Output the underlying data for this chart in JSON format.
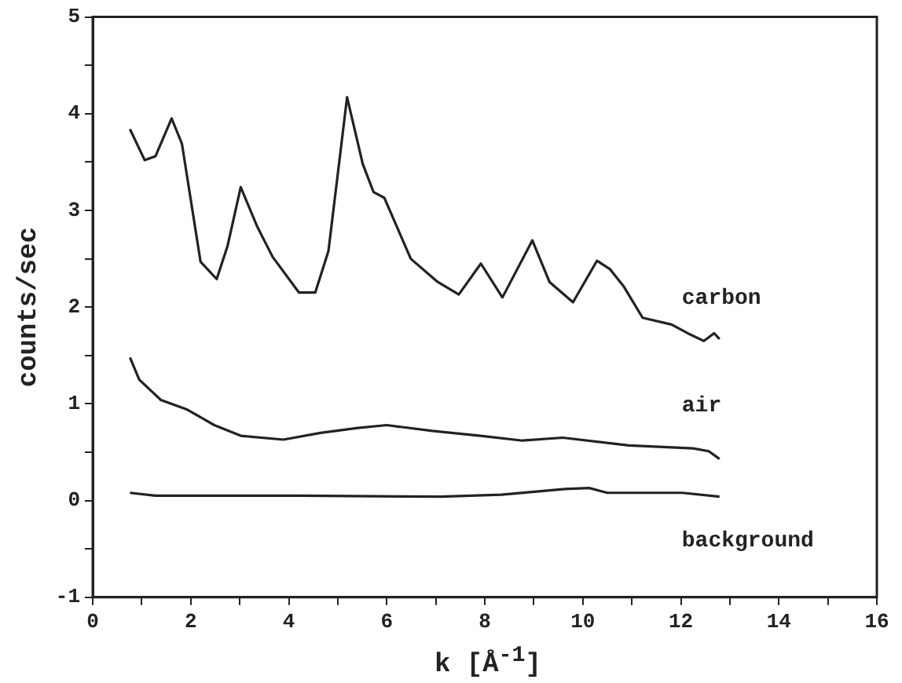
{
  "chart_data": {
    "type": "line",
    "xlabel": "k [Å$^{-1}$]",
    "ylabel": "counts/sec",
    "xlim": [
      0,
      16
    ],
    "ylim": [
      -1,
      5
    ],
    "xticks": [
      0,
      {
        "value": 1,
        "label": null
      },
      2,
      {
        "value": 3,
        "label": null
      },
      4,
      {
        "value": 5,
        "label": null
      },
      6,
      {
        "value": 7,
        "label": null
      },
      8,
      {
        "value": 9,
        "label": null
      },
      10,
      {
        "value": 11,
        "label": null
      },
      12,
      {
        "value": 13,
        "label": null
      },
      14,
      {
        "value": 15,
        "label": null
      },
      16
    ],
    "yticks": [
      -1,
      {
        "value": -0.5,
        "label": null
      },
      0,
      {
        "value": 0.5,
        "label": null
      },
      1,
      {
        "value": 1.5,
        "label": null
      },
      2,
      {
        "value": 2.5,
        "label": null
      },
      3,
      {
        "value": 3.5,
        "label": null
      },
      4,
      {
        "value": 4.5,
        "label": null
      },
      5
    ],
    "grid": false,
    "legend": false,
    "marker": "none",
    "line_style": "solid",
    "series": [
      {
        "name": "carbon",
        "color": "#222222",
        "x": [
          0.76,
          1.06,
          1.28,
          1.61,
          1.82,
          2.2,
          2.53,
          2.75,
          3.02,
          3.35,
          3.67,
          4.21,
          4.54,
          4.81,
          5.19,
          5.51,
          5.73,
          5.95,
          6.49,
          7.04,
          7.47,
          7.92,
          8.36,
          8.97,
          9.32,
          9.8,
          10.29,
          10.56,
          10.84,
          11.22,
          11.81,
          12.14,
          12.47,
          12.68,
          12.79
        ],
        "values": [
          3.84,
          3.52,
          3.56,
          3.95,
          3.69,
          2.47,
          2.29,
          2.63,
          3.24,
          2.84,
          2.52,
          2.15,
          2.15,
          2.58,
          4.17,
          3.48,
          3.19,
          3.13,
          2.5,
          2.26,
          2.13,
          2.45,
          2.1,
          2.69,
          2.26,
          2.05,
          2.48,
          2.39,
          2.21,
          1.89,
          1.82,
          1.73,
          1.65,
          1.73,
          1.67
        ]
      },
      {
        "name": "air",
        "color": "#222222",
        "x": [
          0.76,
          0.95,
          1.39,
          1.93,
          2.48,
          3.02,
          3.89,
          4.65,
          5.41,
          6.0,
          6.93,
          7.91,
          8.77,
          9.59,
          10.94,
          12.25,
          12.57,
          12.79
        ],
        "values": [
          1.48,
          1.25,
          1.04,
          0.94,
          0.78,
          0.67,
          0.63,
          0.7,
          0.75,
          0.78,
          0.72,
          0.67,
          0.62,
          0.65,
          0.57,
          0.54,
          0.51,
          0.43
        ]
      },
      {
        "name": "background",
        "color": "#222222",
        "x": [
          0.76,
          1.28,
          4.21,
          7.1,
          8.34,
          9.64,
          10.13,
          10.5,
          12.03,
          12.79
        ],
        "values": [
          0.08,
          0.05,
          0.05,
          0.04,
          0.06,
          0.12,
          0.13,
          0.08,
          0.08,
          0.04
        ]
      }
    ]
  }
}
